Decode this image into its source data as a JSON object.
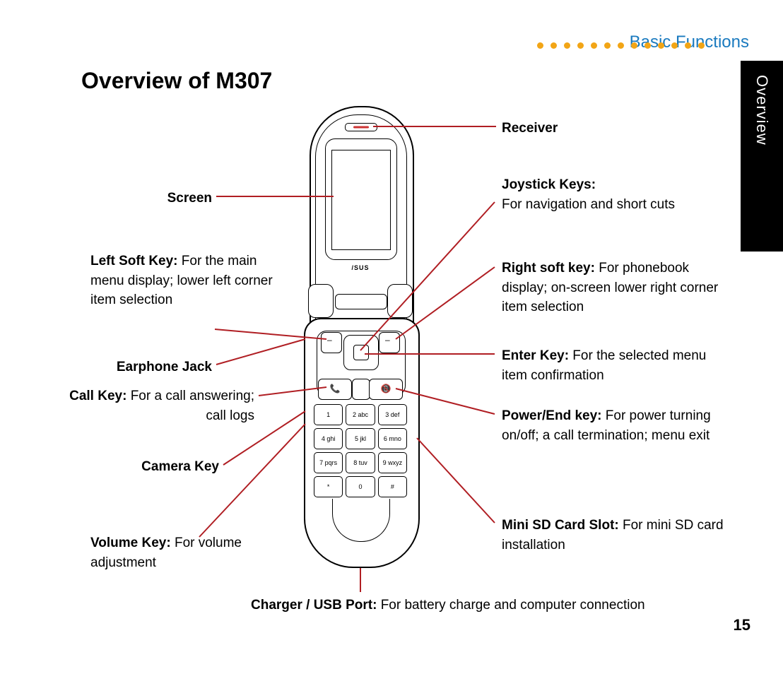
{
  "header": {
    "section": "Basic Functions",
    "section_color": "#1a7abf",
    "dot_color": "#f2a516",
    "dot_count": 13
  },
  "side_tab": "Overview",
  "title": "Overview of M307",
  "page_number": "15",
  "brand": "/SUS",
  "phone_glyphs": {
    "call": "📞",
    "end": "📵"
  },
  "keypad": [
    "1",
    "2 abc",
    "3 def",
    "4 ghi",
    "5 jkl",
    "6 mno",
    "7 pqrs",
    "8 tuv",
    "9 wxyz",
    "*",
    "0",
    "#"
  ],
  "labels": {
    "receiver": {
      "b": "Receiver",
      "t": ""
    },
    "screen": {
      "b": "Screen",
      "t": ""
    },
    "joystick": {
      "b": "Joystick Keys:",
      "t": "For navigation and short cuts"
    },
    "left_soft": {
      "b": "Left Soft Key:",
      "t": " For the main menu display; lower left corner item selection"
    },
    "right_soft": {
      "b": "Right soft key:",
      "t": " For phonebook display; on-screen lower right corner item selection"
    },
    "earphone": {
      "b": "Earphone Jack",
      "t": ""
    },
    "enter": {
      "b": "Enter Key:",
      "t": " For the selected menu item confirmation"
    },
    "call": {
      "b": "Call Key:",
      "t": " For a call answering; call logs"
    },
    "power": {
      "b": "Power/End key:",
      "t": " For power turning on/off; a call termination; menu exit"
    },
    "camera": {
      "b": "Camera Key",
      "t": ""
    },
    "mini_sd": {
      "b": "Mini SD Card Slot:",
      "t": " For mini SD card installation"
    },
    "volume": {
      "b": "Volume Key:",
      "t": " For volume adjustment"
    },
    "charger": {
      "b": "Charger / USB Port:",
      "t": " For battery charge and computer connection"
    }
  },
  "leader_color": "#b01e23"
}
